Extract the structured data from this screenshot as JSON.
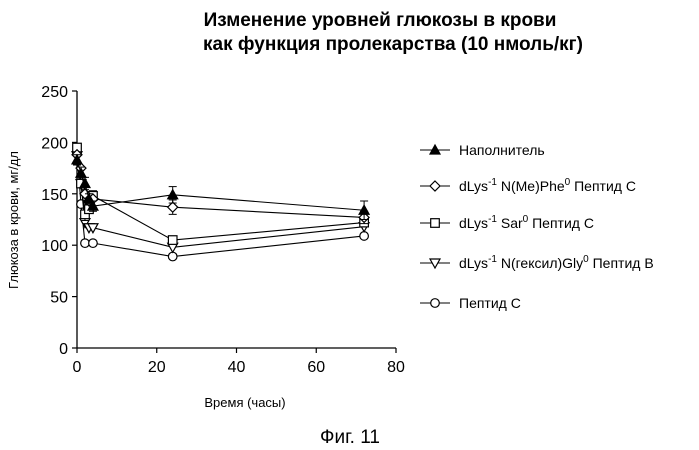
{
  "chart_data": {
    "type": "line",
    "title": [
      "Изменение уровней глюкозы в крови",
      "как функция пролекарства (10 нмоль/кг)"
    ],
    "xlabel": "Время (часы)",
    "ylabel": "Глюкоза в крови, мг/дл",
    "xlim": [
      0,
      80
    ],
    "ylim": [
      0,
      250
    ],
    "xticks": [
      0,
      20,
      40,
      60,
      80
    ],
    "yticks": [
      0,
      50,
      100,
      150,
      200,
      250
    ],
    "legend_position": "right",
    "series": [
      {
        "legend": [
          "Наполнитель"
        ],
        "marker": "filled-triangle",
        "points": [
          [
            0,
            183
          ],
          [
            1,
            170
          ],
          [
            2,
            160
          ],
          [
            3,
            145
          ],
          [
            4,
            138
          ],
          [
            24,
            149
          ],
          [
            72,
            134
          ]
        ],
        "errors": [
          [
            0,
            5
          ],
          [
            1,
            6
          ],
          [
            2,
            6
          ],
          [
            3,
            5
          ],
          [
            4,
            5
          ],
          [
            24,
            8
          ],
          [
            72,
            9
          ]
        ]
      },
      {
        "legend": [
          "dLys",
          "-1",
          " N(Me)Phe",
          "0",
          " Пептид C"
        ],
        "marker": "open-diamond",
        "points": [
          [
            0,
            188
          ],
          [
            1,
            175
          ],
          [
            2,
            150
          ],
          [
            3,
            143
          ],
          [
            4,
            145
          ],
          [
            24,
            137
          ],
          [
            72,
            127
          ]
        ],
        "errors": [
          [
            24,
            7
          ],
          [
            72,
            6
          ]
        ]
      },
      {
        "legend": [
          "dLys",
          "-1",
          " Sar",
          "0",
          " Пептид C"
        ],
        "marker": "open-square",
        "points": [
          [
            0,
            195
          ],
          [
            1,
            160
          ],
          [
            2,
            130
          ],
          [
            3,
            135
          ],
          [
            4,
            148
          ],
          [
            24,
            105
          ],
          [
            72,
            122
          ]
        ],
        "errors": [
          [
            2,
            6
          ],
          [
            4,
            5
          ]
        ]
      },
      {
        "legend": [
          "dLys",
          "-1",
          " N(гексил)Gly",
          "0",
          " Пептид B"
        ],
        "marker": "open-triangle-down",
        "points": [
          [
            0,
            187
          ],
          [
            1,
            160
          ],
          [
            2,
            122
          ],
          [
            3,
            117
          ],
          [
            4,
            117
          ],
          [
            24,
            98
          ],
          [
            72,
            118
          ]
        ],
        "errors": []
      },
      {
        "legend": [
          "Пептид C"
        ],
        "marker": "open-circle",
        "points": [
          [
            0,
            190
          ],
          [
            1,
            140
          ],
          [
            2,
            102
          ],
          [
            4,
            102
          ],
          [
            24,
            89
          ],
          [
            72,
            109
          ]
        ],
        "errors": []
      }
    ],
    "caption": "Фиг. 11"
  }
}
